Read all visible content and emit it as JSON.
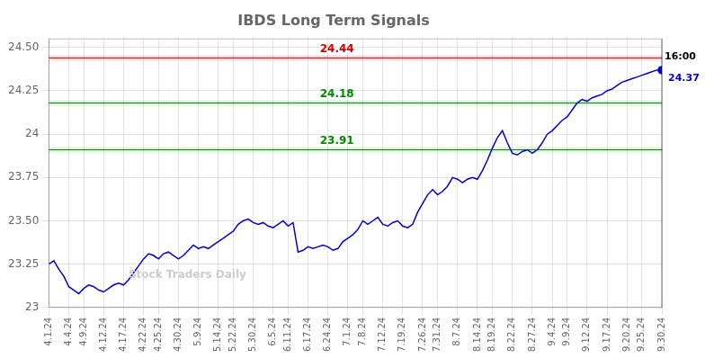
{
  "chart_data": {
    "type": "line",
    "title": "IBDS Long Term Signals",
    "categories": [
      "4.1.24",
      null,
      null,
      null,
      "4.4.24",
      null,
      null,
      "4.9.24",
      null,
      null,
      null,
      "4.12.24",
      null,
      null,
      null,
      "4.17.24",
      null,
      null,
      null,
      "4.22.24",
      null,
      null,
      "4.25.24",
      null,
      null,
      null,
      "4.30.24",
      null,
      null,
      null,
      "5.9.24",
      null,
      null,
      null,
      "5.14.24",
      null,
      null,
      "5.22.24",
      null,
      null,
      null,
      "5.30.24",
      null,
      null,
      null,
      "6.5.24",
      null,
      null,
      "6.11.24",
      null,
      null,
      null,
      "6.17.24",
      null,
      null,
      null,
      "6.24.24",
      null,
      null,
      null,
      "7.1.24",
      null,
      null,
      "7.8.24",
      null,
      null,
      null,
      "7.12.24",
      null,
      null,
      null,
      "7.19.24",
      null,
      null,
      null,
      "7.26.24",
      null,
      null,
      "7.31.24",
      null,
      null,
      null,
      "8.7.24",
      null,
      null,
      null,
      "8.14.24",
      null,
      null,
      "8.19.24",
      null,
      null,
      null,
      "8.22.24",
      null,
      null,
      null,
      "8.27.24",
      null,
      null,
      null,
      "9.4.24",
      null,
      null,
      "9.9.24",
      null,
      null,
      null,
      "9.12.24",
      null,
      null,
      null,
      "9.17.24",
      null,
      null,
      null,
      "9.20.24",
      null,
      null,
      "9.25.24",
      null,
      null,
      null,
      "9.30.24"
    ],
    "values": [
      23.25,
      23.27,
      23.22,
      23.18,
      23.12,
      23.1,
      23.08,
      23.11,
      23.13,
      23.12,
      23.1,
      23.09,
      23.11,
      23.13,
      23.14,
      23.13,
      23.16,
      23.2,
      23.24,
      23.28,
      23.31,
      23.3,
      23.28,
      23.31,
      23.32,
      23.3,
      23.28,
      23.3,
      23.33,
      23.36,
      23.34,
      23.35,
      23.34,
      23.36,
      23.38,
      23.4,
      23.42,
      23.44,
      23.48,
      23.5,
      23.51,
      23.49,
      23.48,
      23.49,
      23.47,
      23.46,
      23.48,
      23.5,
      23.47,
      23.49,
      23.32,
      23.33,
      23.35,
      23.34,
      23.35,
      23.36,
      23.35,
      23.33,
      23.34,
      23.38,
      23.4,
      23.42,
      23.45,
      23.5,
      23.48,
      23.5,
      23.52,
      23.48,
      23.47,
      23.49,
      23.5,
      23.47,
      23.46,
      23.48,
      23.55,
      23.6,
      23.65,
      23.68,
      23.65,
      23.67,
      23.7,
      23.75,
      23.74,
      23.72,
      23.74,
      23.75,
      23.74,
      23.79,
      23.85,
      23.92,
      23.98,
      24.02,
      23.95,
      23.89,
      23.88,
      23.9,
      23.91,
      23.89,
      23.91,
      23.95,
      24.0,
      24.02,
      24.05,
      24.08,
      24.1,
      24.14,
      24.18,
      24.2,
      24.19,
      24.21,
      24.22,
      24.23,
      24.25,
      24.26,
      24.28,
      24.3,
      24.31,
      24.32,
      24.33,
      24.34,
      24.35,
      24.36,
      24.37,
      24.37
    ],
    "color": "#0000cc",
    "ylim": [
      23.0,
      24.55
    ],
    "yticks": [
      23,
      23.25,
      {
        "value": 23.5,
        "label": "23.50"
      },
      23.75,
      24,
      24.25,
      {
        "value": 24.5,
        "label": "24.50"
      }
    ],
    "grid": true,
    "hlines": [
      {
        "value": 24.44,
        "label": "24.44",
        "color": "#cc0000"
      },
      {
        "value": 24.18,
        "label": "24.18",
        "color": "#008800"
      },
      {
        "value": 23.91,
        "label": "23.91",
        "color": "#008800"
      }
    ],
    "annotations": [
      {
        "text": "16:00",
        "color": "#000000"
      },
      {
        "text": "24.37",
        "color": "#0000cc"
      },
      {
        "text": "Stock Traders Daily",
        "color": "#cccccc"
      }
    ]
  }
}
